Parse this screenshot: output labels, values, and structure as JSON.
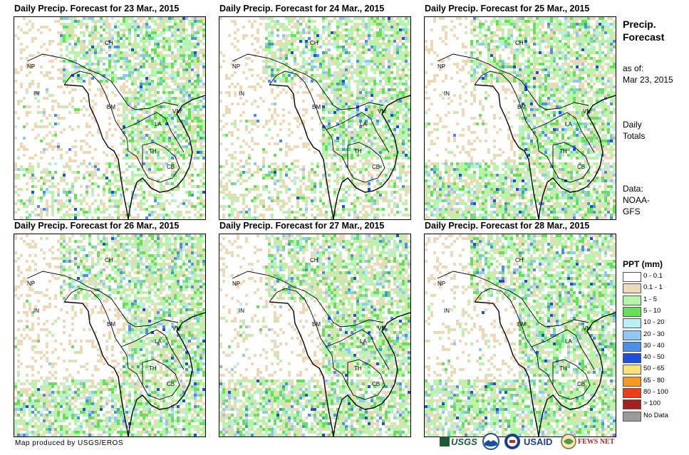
{
  "panels": [
    {
      "title": "Daily Precip. Forecast for 23 Mar., 2015"
    },
    {
      "title": "Daily Precip. Forecast for 24 Mar., 2015"
    },
    {
      "title": "Daily Precip. Forecast for 25 Mar., 2015"
    },
    {
      "title": "Daily Precip. Forecast for 26 Mar., 2015"
    },
    {
      "title": "Daily Precip. Forecast for 27 Mar., 2015"
    },
    {
      "title": "Daily Precip. Forecast for 28 Mar., 2015"
    }
  ],
  "country_labels": {
    "ch": "CH",
    "np": "NP",
    "in": "IN",
    "bm": "BM",
    "la": "LA",
    "vm": "VM",
    "th": "TH",
    "cb": "CB"
  },
  "sidebar": {
    "title_line1": "Precip.",
    "title_line2": "Forecast",
    "asof_line1": "as of:",
    "asof_line2": "Mar 23, 2015",
    "totals_line1": "Daily",
    "totals_line2": "Totals",
    "data_line1": "Data:",
    "data_line2": "NOAA-",
    "data_line3": "GFS"
  },
  "legend": {
    "title": "PPT (mm)",
    "items": [
      {
        "label": "0 - 0.1",
        "color": "#ffffff"
      },
      {
        "label": "0.1 - 1",
        "color": "#eed9b7"
      },
      {
        "label": "1 - 5",
        "color": "#b4f5a8"
      },
      {
        "label": "5 - 10",
        "color": "#66e05a"
      },
      {
        "label": "10 - 20",
        "color": "#b7f0f5"
      },
      {
        "label": "20 - 30",
        "color": "#8ec8f5"
      },
      {
        "label": "30 - 40",
        "color": "#4a90e8"
      },
      {
        "label": "40 - 50",
        "color": "#1c4ee0"
      },
      {
        "label": "50 - 65",
        "color": "#f7e37a"
      },
      {
        "label": "65 - 80",
        "color": "#f59a1e"
      },
      {
        "label": "80 - 100",
        "color": "#f03c1a"
      },
      {
        "label": "> 100",
        "color": "#a52020"
      },
      {
        "label": "No Data",
        "color": "#9a9a9a"
      }
    ]
  },
  "footer": {
    "credit": "Map produced by USGS/EROS"
  },
  "logos": {
    "usgs": "USGS",
    "usaid": "USAID",
    "fewsnet": "FEWS NET",
    "noaa_icon": "noaa-logo-icon"
  }
}
